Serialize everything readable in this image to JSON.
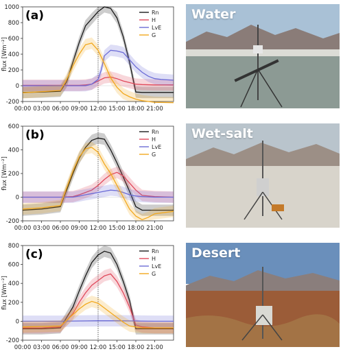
{
  "chart_data": [
    {
      "type": "line",
      "panel_label": "(a)",
      "ylabel": "flux [Wm⁻²]",
      "ylim": [
        -200,
        1000
      ],
      "yticks": [
        -200,
        0,
        200,
        400,
        600,
        800,
        1000
      ],
      "xtick_labels": [
        "00:00",
        "03:00",
        "06:00",
        "09:00",
        "12:00",
        "15:00",
        "18:00",
        "21:00"
      ],
      "xlim_hours": [
        0,
        24
      ],
      "vline_hour": 12,
      "legend_position": "top-right",
      "series": [
        {
          "name": "Rn",
          "color": "#1a1a1a",
          "hours": [
            0,
            3,
            6,
            7,
            8,
            9,
            10,
            11,
            12,
            13,
            14,
            15,
            16,
            17,
            18,
            19,
            21,
            24
          ],
          "values": [
            -85,
            -80,
            -70,
            50,
            300,
            550,
            760,
            850,
            940,
            1000,
            980,
            860,
            620,
            300,
            -80,
            -85,
            -85,
            -85
          ]
        },
        {
          "name": "H",
          "color": "#e0485a",
          "hours": [
            0,
            3,
            6,
            7,
            8,
            9,
            10,
            11,
            12,
            13,
            14,
            15,
            16,
            17,
            18,
            19,
            21,
            24
          ],
          "values": [
            5,
            5,
            5,
            5,
            5,
            5,
            10,
            20,
            60,
            100,
            110,
            90,
            60,
            40,
            20,
            15,
            10,
            10
          ]
        },
        {
          "name": "LvE",
          "color": "#6b6bd6",
          "hours": [
            0,
            3,
            6,
            8,
            10,
            11,
            12,
            12.5,
            13,
            14,
            15,
            16,
            17,
            18,
            19,
            20,
            21,
            22,
            24
          ],
          "values": [
            0,
            0,
            0,
            0,
            0,
            20,
            80,
            200,
            380,
            450,
            440,
            420,
            330,
            240,
            170,
            120,
            90,
            80,
            70
          ]
        },
        {
          "name": "G",
          "color": "#f2a81d",
          "hours": [
            0,
            2,
            4,
            6,
            7,
            8,
            9,
            10,
            11,
            12,
            13,
            14,
            15,
            16,
            17,
            18,
            19,
            20,
            21,
            24
          ],
          "values": [
            -90,
            -80,
            -70,
            -60,
            80,
            250,
            400,
            520,
            540,
            450,
            280,
            100,
            -20,
            -100,
            -140,
            -170,
            -190,
            -200,
            -210,
            -215
          ]
        }
      ]
    },
    {
      "type": "line",
      "panel_label": "(b)",
      "ylabel": "flux [Wm⁻²]",
      "ylim": [
        -200,
        600
      ],
      "yticks": [
        -200,
        0,
        200,
        400,
        600
      ],
      "xtick_labels": [
        "00:00",
        "03:00",
        "06:00",
        "09:00",
        "12:00",
        "15:00",
        "18:00",
        "21:00"
      ],
      "xlim_hours": [
        0,
        24
      ],
      "vline_hour": 12,
      "legend_position": "top-right",
      "series": [
        {
          "name": "Rn",
          "color": "#1a1a1a",
          "hours": [
            0,
            3,
            6,
            7,
            8,
            9,
            10,
            11,
            12,
            13,
            14,
            15,
            16,
            17,
            18,
            19,
            21,
            24
          ],
          "values": [
            -110,
            -100,
            -80,
            60,
            200,
            330,
            420,
            480,
            500,
            490,
            400,
            290,
            170,
            50,
            -80,
            -110,
            -110,
            -110
          ]
        },
        {
          "name": "H",
          "color": "#e0485a",
          "hours": [
            0,
            3,
            6,
            8,
            9,
            10,
            11,
            12,
            13,
            14,
            15,
            16,
            17,
            18,
            19,
            21,
            24
          ],
          "values": [
            0,
            0,
            0,
            5,
            20,
            40,
            60,
            100,
            150,
            190,
            210,
            180,
            120,
            60,
            15,
            5,
            0
          ]
        },
        {
          "name": "LvE",
          "color": "#6b6bd6",
          "hours": [
            0,
            3,
            6,
            8,
            9,
            10,
            11,
            12,
            13,
            14,
            15,
            16,
            17,
            18,
            19,
            21,
            24
          ],
          "values": [
            0,
            0,
            0,
            0,
            10,
            20,
            30,
            40,
            50,
            60,
            55,
            40,
            20,
            10,
            5,
            0,
            0
          ]
        },
        {
          "name": "G",
          "color": "#f2a81d",
          "hours": [
            0,
            3,
            6,
            7,
            8,
            9,
            10,
            11,
            12,
            13,
            14,
            15,
            16,
            17,
            18,
            19,
            20,
            21,
            24
          ],
          "values": [
            -100,
            -90,
            -70,
            80,
            220,
            340,
            410,
            420,
            380,
            280,
            200,
            100,
            0,
            -100,
            -160,
            -190,
            -170,
            -140,
            -120
          ]
        }
      ]
    },
    {
      "type": "line",
      "panel_label": "(c)",
      "ylabel": "flux [Wm⁻²]",
      "ylim": [
        -200,
        800
      ],
      "yticks": [
        -200,
        0,
        200,
        400,
        600,
        800
      ],
      "xtick_labels": [
        "00:00",
        "03:00",
        "06:00",
        "09:00",
        "12:00",
        "15:00",
        "18:00",
        "21:00"
      ],
      "xlim_hours": [
        0,
        24
      ],
      "vline_hour": 12,
      "legend_position": "top-right",
      "series": [
        {
          "name": "Rn",
          "color": "#1a1a1a",
          "hours": [
            0,
            3,
            6,
            7,
            8,
            9,
            10,
            11,
            12,
            13,
            14,
            15,
            16,
            17,
            18,
            19,
            21,
            24
          ],
          "values": [
            -80,
            -80,
            -70,
            40,
            150,
            320,
            480,
            620,
            700,
            740,
            720,
            600,
            420,
            220,
            -80,
            -80,
            -80,
            -80
          ]
        },
        {
          "name": "H",
          "color": "#e0485a",
          "hours": [
            0,
            3,
            6,
            7,
            8,
            9,
            10,
            11,
            12,
            13,
            14,
            15,
            16,
            17,
            18,
            19,
            21,
            24
          ],
          "values": [
            -70,
            -70,
            -60,
            10,
            80,
            200,
            300,
            380,
            430,
            480,
            500,
            420,
            300,
            150,
            -40,
            -60,
            -70,
            -70
          ]
        },
        {
          "name": "LvE",
          "color": "#6b6bd6",
          "hours": [
            0,
            6,
            9,
            12,
            15,
            18,
            21,
            24
          ],
          "values": [
            0,
            0,
            3,
            5,
            5,
            3,
            0,
            0
          ]
        },
        {
          "name": "G",
          "color": "#f2a81d",
          "hours": [
            0,
            3,
            6,
            7,
            8,
            9,
            10,
            11,
            12,
            13,
            14,
            15,
            16,
            17,
            18,
            19,
            21,
            24
          ],
          "values": [
            -60,
            -55,
            -50,
            10,
            70,
            130,
            180,
            210,
            190,
            140,
            90,
            40,
            -10,
            -50,
            -60,
            -70,
            -70,
            -70
          ]
        }
      ]
    }
  ],
  "photos": [
    {
      "label": "Water",
      "sky": "#9fb8d0",
      "ground": "#8e9a93"
    },
    {
      "label": "Wet-salt",
      "sky": "#b6c2cc",
      "ground": "#d6d2c8"
    },
    {
      "label": "Desert",
      "sky": "#5f86b3",
      "ground": "#9a5a36"
    }
  ]
}
